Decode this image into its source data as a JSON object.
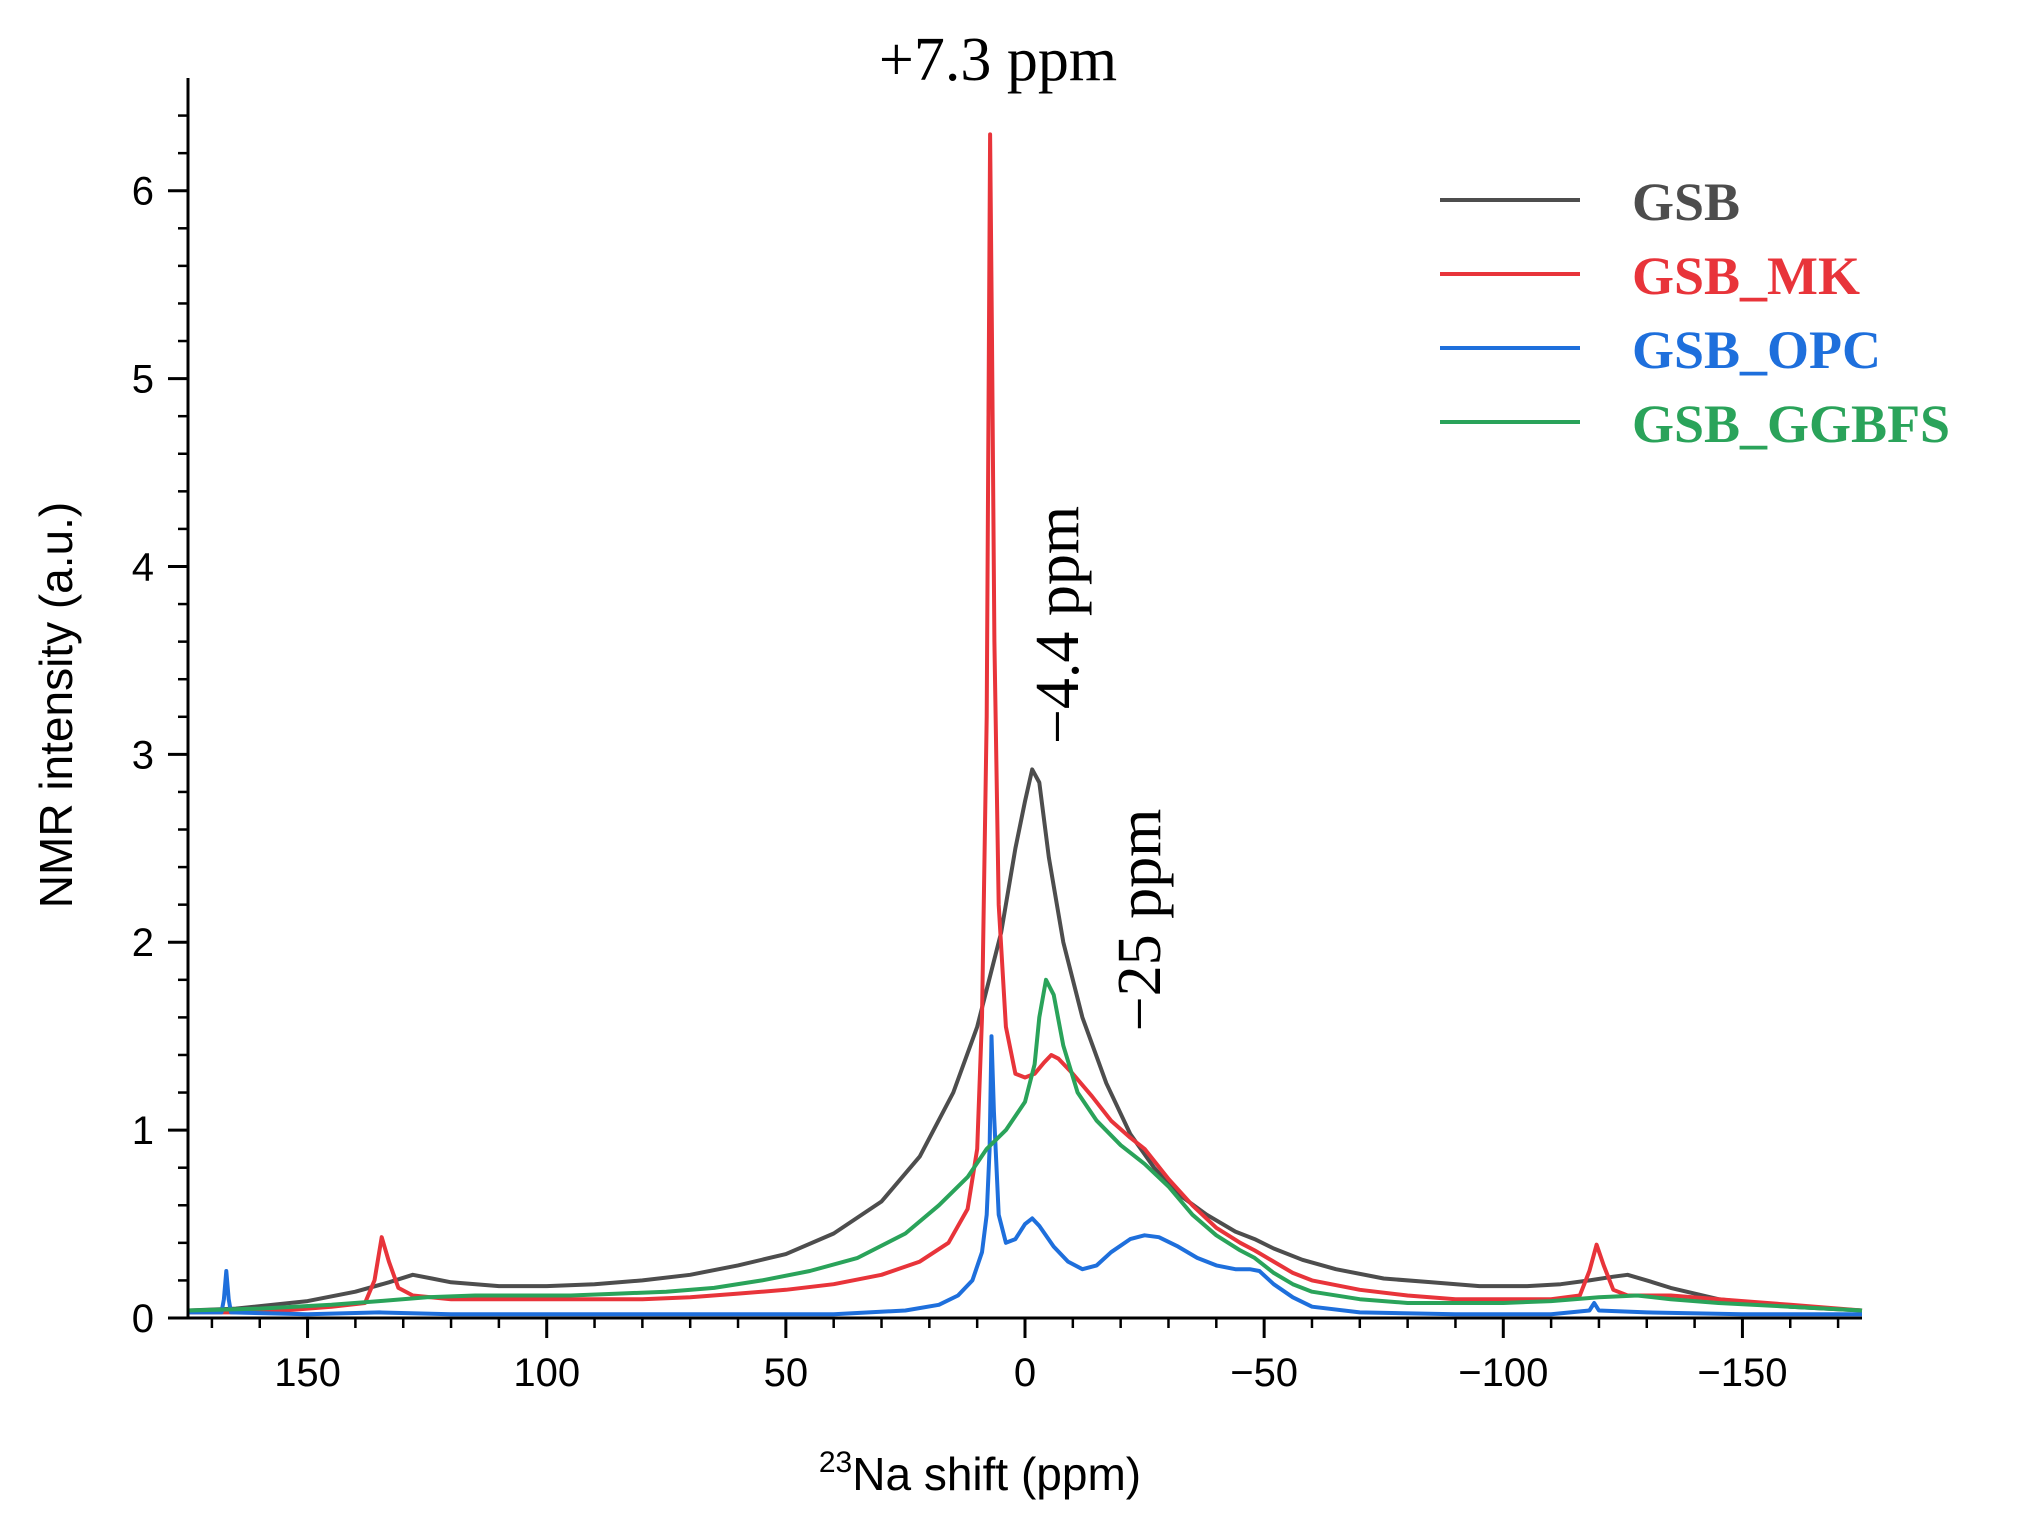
{
  "chart_data": {
    "type": "line",
    "xlabel_sup": "23",
    "xlabel_main": "Na shift (ppm)",
    "ylabel": "NMR intensity (a.u.)",
    "xlim": [
      175,
      -175
    ],
    "ylim": [
      0,
      6.6
    ],
    "x_ticks": [
      150,
      100,
      50,
      0,
      -50,
      -100,
      -150
    ],
    "x_tick_labels": [
      "150",
      "100",
      "50",
      "0",
      "−50",
      "−100",
      "−150"
    ],
    "y_ticks": [
      0,
      1,
      2,
      3,
      4,
      5,
      6
    ],
    "y_tick_labels": [
      "0",
      "1",
      "2",
      "3",
      "4",
      "5",
      "6"
    ],
    "annotations": [
      {
        "text": "+7.3 ppm",
        "x": 7.3,
        "y": 6.3,
        "rotated": false
      },
      {
        "text": "−4.4 ppm",
        "x": -4.4,
        "y": 2.95,
        "rotated": true
      },
      {
        "text": "−25 ppm",
        "x": -25,
        "y": 1.4,
        "rotated": true
      }
    ],
    "legend_position": "top-right",
    "series": [
      {
        "name": "GSB",
        "color": "#4d4d4d",
        "points": [
          [
            175,
            0.04
          ],
          [
            165,
            0.05
          ],
          [
            150,
            0.09
          ],
          [
            140,
            0.14
          ],
          [
            133,
            0.19
          ],
          [
            128,
            0.23
          ],
          [
            124,
            0.21
          ],
          [
            120,
            0.19
          ],
          [
            110,
            0.17
          ],
          [
            100,
            0.17
          ],
          [
            90,
            0.18
          ],
          [
            80,
            0.2
          ],
          [
            70,
            0.23
          ],
          [
            60,
            0.28
          ],
          [
            50,
            0.34
          ],
          [
            40,
            0.45
          ],
          [
            30,
            0.62
          ],
          [
            22,
            0.86
          ],
          [
            15,
            1.2
          ],
          [
            10,
            1.55
          ],
          [
            5,
            2.05
          ],
          [
            2,
            2.5
          ],
          [
            0,
            2.75
          ],
          [
            -1.5,
            2.92
          ],
          [
            -3,
            2.85
          ],
          [
            -5,
            2.45
          ],
          [
            -8,
            2.0
          ],
          [
            -12,
            1.6
          ],
          [
            -17,
            1.25
          ],
          [
            -22,
            0.98
          ],
          [
            -27,
            0.8
          ],
          [
            -32,
            0.66
          ],
          [
            -38,
            0.55
          ],
          [
            -44,
            0.46
          ],
          [
            -48,
            0.42
          ],
          [
            -52,
            0.37
          ],
          [
            -58,
            0.31
          ],
          [
            -65,
            0.26
          ],
          [
            -75,
            0.21
          ],
          [
            -85,
            0.19
          ],
          [
            -95,
            0.17
          ],
          [
            -105,
            0.17
          ],
          [
            -112,
            0.18
          ],
          [
            -118,
            0.2
          ],
          [
            -123,
            0.22
          ],
          [
            -126,
            0.23
          ],
          [
            -130,
            0.2
          ],
          [
            -135,
            0.16
          ],
          [
            -145,
            0.1
          ],
          [
            -160,
            0.06
          ],
          [
            -175,
            0.04
          ]
        ]
      },
      {
        "name": "GSB_MK",
        "color": "#e8343a",
        "points": [
          [
            175,
            0.03
          ],
          [
            160,
            0.03
          ],
          [
            145,
            0.06
          ],
          [
            138,
            0.08
          ],
          [
            136,
            0.2
          ],
          [
            134.5,
            0.43
          ],
          [
            133,
            0.3
          ],
          [
            131,
            0.16
          ],
          [
            128,
            0.12
          ],
          [
            120,
            0.1
          ],
          [
            110,
            0.1
          ],
          [
            100,
            0.1
          ],
          [
            90,
            0.1
          ],
          [
            80,
            0.1
          ],
          [
            70,
            0.11
          ],
          [
            60,
            0.13
          ],
          [
            50,
            0.15
          ],
          [
            40,
            0.18
          ],
          [
            30,
            0.23
          ],
          [
            22,
            0.3
          ],
          [
            16,
            0.4
          ],
          [
            12,
            0.58
          ],
          [
            10,
            0.9
          ],
          [
            9,
            1.6
          ],
          [
            8,
            3.2
          ],
          [
            7.6,
            5.0
          ],
          [
            7.3,
            6.3
          ],
          [
            6.9,
            5.2
          ],
          [
            6.4,
            3.6
          ],
          [
            5.5,
            2.2
          ],
          [
            4,
            1.55
          ],
          [
            2,
            1.3
          ],
          [
            0,
            1.28
          ],
          [
            -2,
            1.3
          ],
          [
            -4,
            1.36
          ],
          [
            -5.5,
            1.4
          ],
          [
            -7,
            1.38
          ],
          [
            -10,
            1.3
          ],
          [
            -14,
            1.18
          ],
          [
            -18,
            1.05
          ],
          [
            -22,
            0.96
          ],
          [
            -25,
            0.9
          ],
          [
            -30,
            0.74
          ],
          [
            -35,
            0.6
          ],
          [
            -40,
            0.48
          ],
          [
            -45,
            0.4
          ],
          [
            -48,
            0.36
          ],
          [
            -52,
            0.3
          ],
          [
            -56,
            0.24
          ],
          [
            -60,
            0.2
          ],
          [
            -70,
            0.15
          ],
          [
            -80,
            0.12
          ],
          [
            -90,
            0.1
          ],
          [
            -100,
            0.1
          ],
          [
            -110,
            0.1
          ],
          [
            -116,
            0.12
          ],
          [
            -118,
            0.25
          ],
          [
            -119.5,
            0.39
          ],
          [
            -121,
            0.28
          ],
          [
            -123,
            0.15
          ],
          [
            -126,
            0.12
          ],
          [
            -135,
            0.12
          ],
          [
            -145,
            0.1
          ],
          [
            -160,
            0.07
          ],
          [
            -175,
            0.04
          ]
        ]
      },
      {
        "name": "GSB_OPC",
        "color": "#1e6fdc",
        "points": [
          [
            175,
            0.03
          ],
          [
            168,
            0.03
          ],
          [
            167.5,
            0.1
          ],
          [
            167,
            0.25
          ],
          [
            166.5,
            0.1
          ],
          [
            166,
            0.03
          ],
          [
            150,
            0.02
          ],
          [
            135,
            0.03
          ],
          [
            120,
            0.02
          ],
          [
            100,
            0.02
          ],
          [
            80,
            0.02
          ],
          [
            60,
            0.02
          ],
          [
            40,
            0.02
          ],
          [
            25,
            0.04
          ],
          [
            18,
            0.07
          ],
          [
            14,
            0.12
          ],
          [
            11,
            0.2
          ],
          [
            9,
            0.35
          ],
          [
            8,
            0.55
          ],
          [
            7.4,
            0.9
          ],
          [
            7,
            1.5
          ],
          [
            6.5,
            1.1
          ],
          [
            5.5,
            0.55
          ],
          [
            4,
            0.4
          ],
          [
            2,
            0.42
          ],
          [
            0,
            0.5
          ],
          [
            -1.5,
            0.53
          ],
          [
            -3,
            0.49
          ],
          [
            -6,
            0.38
          ],
          [
            -9,
            0.3
          ],
          [
            -12,
            0.26
          ],
          [
            -15,
            0.28
          ],
          [
            -18,
            0.35
          ],
          [
            -22,
            0.42
          ],
          [
            -25,
            0.44
          ],
          [
            -28,
            0.43
          ],
          [
            -32,
            0.38
          ],
          [
            -36,
            0.32
          ],
          [
            -40,
            0.28
          ],
          [
            -44,
            0.26
          ],
          [
            -47,
            0.26
          ],
          [
            -49,
            0.25
          ],
          [
            -52,
            0.18
          ],
          [
            -56,
            0.11
          ],
          [
            -60,
            0.06
          ],
          [
            -70,
            0.03
          ],
          [
            -90,
            0.02
          ],
          [
            -110,
            0.02
          ],
          [
            -118,
            0.04
          ],
          [
            -119,
            0.08
          ],
          [
            -120,
            0.04
          ],
          [
            -130,
            0.03
          ],
          [
            -150,
            0.02
          ],
          [
            -175,
            0.02
          ]
        ]
      },
      {
        "name": "GSB_GGBFS",
        "color": "#2aa35a",
        "points": [
          [
            175,
            0.04
          ],
          [
            160,
            0.05
          ],
          [
            145,
            0.07
          ],
          [
            135,
            0.09
          ],
          [
            125,
            0.11
          ],
          [
            115,
            0.12
          ],
          [
            105,
            0.12
          ],
          [
            95,
            0.12
          ],
          [
            85,
            0.13
          ],
          [
            75,
            0.14
          ],
          [
            65,
            0.16
          ],
          [
            55,
            0.2
          ],
          [
            45,
            0.25
          ],
          [
            35,
            0.32
          ],
          [
            25,
            0.45
          ],
          [
            18,
            0.6
          ],
          [
            12,
            0.75
          ],
          [
            8,
            0.9
          ],
          [
            4,
            1.0
          ],
          [
            0,
            1.15
          ],
          [
            -2,
            1.35
          ],
          [
            -3,
            1.6
          ],
          [
            -4.4,
            1.8
          ],
          [
            -6,
            1.72
          ],
          [
            -8,
            1.45
          ],
          [
            -11,
            1.2
          ],
          [
            -15,
            1.05
          ],
          [
            -20,
            0.92
          ],
          [
            -25,
            0.82
          ],
          [
            -30,
            0.7
          ],
          [
            -35,
            0.55
          ],
          [
            -40,
            0.44
          ],
          [
            -45,
            0.36
          ],
          [
            -48,
            0.32
          ],
          [
            -52,
            0.24
          ],
          [
            -56,
            0.18
          ],
          [
            -60,
            0.14
          ],
          [
            -70,
            0.1
          ],
          [
            -80,
            0.08
          ],
          [
            -90,
            0.08
          ],
          [
            -100,
            0.08
          ],
          [
            -110,
            0.09
          ],
          [
            -120,
            0.11
          ],
          [
            -128,
            0.12
          ],
          [
            -135,
            0.1
          ],
          [
            -145,
            0.08
          ],
          [
            -160,
            0.06
          ],
          [
            -175,
            0.04
          ]
        ]
      }
    ]
  }
}
